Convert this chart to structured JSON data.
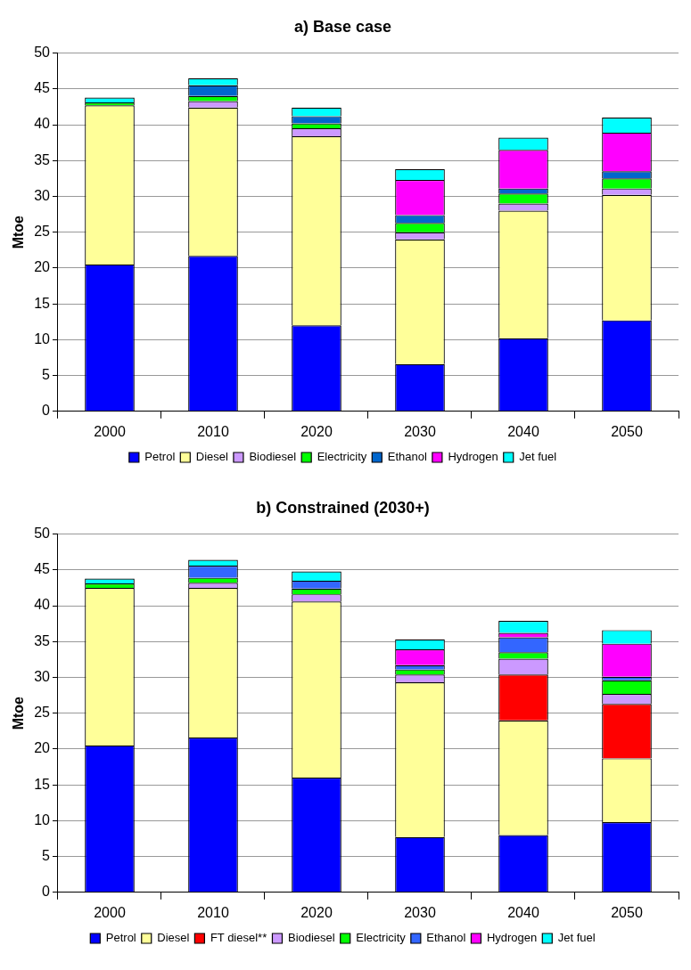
{
  "chart_data": [
    {
      "type": "bar",
      "title": "a) Base case",
      "ylabel": "Mtoe",
      "categories": [
        "2000",
        "2010",
        "2020",
        "2030",
        "2040",
        "2050"
      ],
      "stacked": true,
      "ylim": [
        0,
        50
      ],
      "yticks": [
        0,
        5,
        10,
        15,
        20,
        25,
        30,
        35,
        40,
        45,
        50
      ],
      "grid": "y",
      "legend": "bottom",
      "series": [
        {
          "name": "Petrol",
          "color": "#0000ff",
          "values": [
            20.5,
            21.7,
            12,
            6.6,
            10.2,
            12.7
          ]
        },
        {
          "name": "Diesel",
          "color": "#ffff99",
          "values": [
            22.2,
            20.7,
            26.4,
            17.4,
            17.8,
            17.5
          ]
        },
        {
          "name": "Biodiesel",
          "color": "#cc99ff",
          "values": [
            0,
            0.9,
            1.1,
            1.0,
            1.0,
            0.9
          ]
        },
        {
          "name": "Electricity",
          "color": "#00ff00",
          "values": [
            0.4,
            0.7,
            0.7,
            1.3,
            1.4,
            1.4
          ]
        },
        {
          "name": "Ethanol",
          "color": "#0066cc",
          "values": [
            0,
            1.5,
            1.0,
            1.1,
            0.7,
            1.0
          ]
        },
        {
          "name": "Hydrogen",
          "color": "#ff00ff",
          "values": [
            0,
            0,
            0,
            4.9,
            5.4,
            5.4
          ]
        },
        {
          "name": "Jet fuel",
          "color": "#00ffff",
          "values": [
            0.7,
            1.0,
            1.2,
            1.5,
            1.7,
            2.1
          ]
        }
      ]
    },
    {
      "type": "bar",
      "title": "b) Constrained (2030+)",
      "ylabel": "Mtoe",
      "categories": [
        "2000",
        "2010",
        "2020",
        "2030",
        "2040",
        "2050"
      ],
      "stacked": true,
      "ylim": [
        0,
        50
      ],
      "yticks": [
        0,
        5,
        10,
        15,
        20,
        25,
        30,
        35,
        40,
        45,
        50
      ],
      "grid": "y",
      "legend": "bottom",
      "series": [
        {
          "name": "Petrol",
          "color": "#0000ff",
          "values": [
            20.5,
            21.6,
            16,
            7.7,
            8.0,
            9.8
          ]
        },
        {
          "name": "Diesel",
          "color": "#ffff99",
          "values": [
            22.0,
            20.9,
            24.6,
            21.6,
            16.0,
            8.9
          ]
        },
        {
          "name": "FT diesel**",
          "color": "#ff0000",
          "values": [
            0,
            0,
            0,
            0,
            6.4,
            7.6
          ]
        },
        {
          "name": "Biodiesel",
          "color": "#cc99ff",
          "values": [
            0,
            0.7,
            1.0,
            1.1,
            2.2,
            1.4
          ]
        },
        {
          "name": "Electricity",
          "color": "#00ff00",
          "values": [
            0.6,
            0.7,
            0.8,
            0.7,
            0.9,
            1.9
          ]
        },
        {
          "name": "Ethanol",
          "color": "#3366ff",
          "values": [
            0,
            1.7,
            1.1,
            0.6,
            2.1,
            0.5
          ]
        },
        {
          "name": "Hydrogen",
          "color": "#ff00ff",
          "values": [
            0,
            0,
            0,
            2.2,
            0.6,
            4.6
          ]
        },
        {
          "name": "Jet fuel",
          "color": "#00ffff",
          "values": [
            0.7,
            0.8,
            1.3,
            1.4,
            1.7,
            1.9
          ]
        }
      ]
    }
  ]
}
